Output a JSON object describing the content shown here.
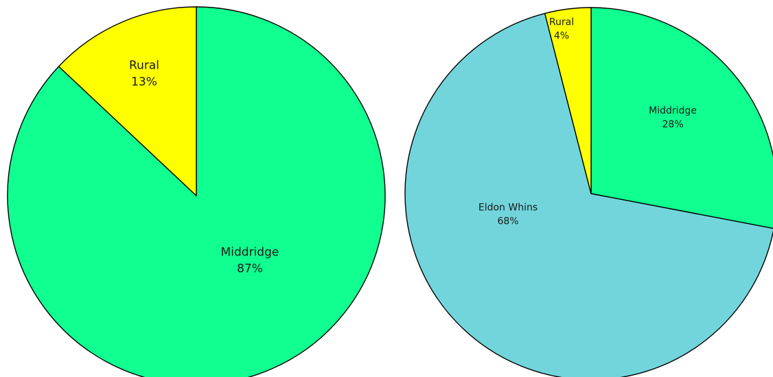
{
  "chart_data": [
    {
      "type": "pie",
      "title": "",
      "slices": [
        {
          "label": "Middridge",
          "value": 87,
          "value_label": "87%",
          "color": "#10ff90"
        },
        {
          "label": "Rural",
          "value": 13,
          "value_label": "13%",
          "color": "#ffff00"
        }
      ]
    },
    {
      "type": "pie",
      "title": "",
      "slices": [
        {
          "label": "Middridge",
          "value": 28,
          "value_label": "28%",
          "color": "#10ff90"
        },
        {
          "label": "Eldon Whins",
          "value": 68,
          "value_label": "68%",
          "color": "#72d5dc"
        },
        {
          "label": "Rural",
          "value": 4,
          "value_label": "4%",
          "color": "#ffff00"
        }
      ]
    }
  ]
}
